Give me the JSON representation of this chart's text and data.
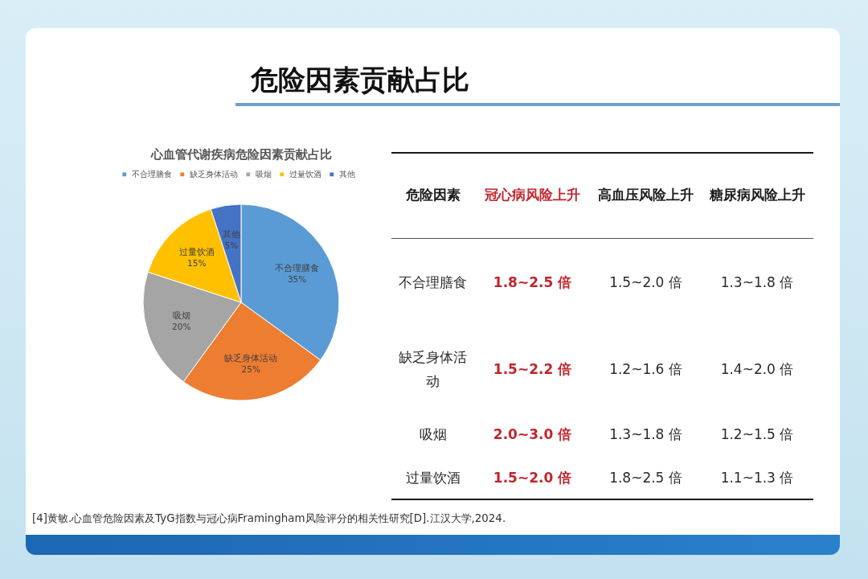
{
  "chart_data": [
    {
      "type": "other",
      "title": "危险因素贡献占比"
    },
    {
      "type": "pie",
      "title": "心血管代谢疾病危险因素贡献占比",
      "categories": [
        "不合理膳食",
        "缺乏身体活动",
        "吸烟",
        "过量饮酒",
        "其他"
      ],
      "values": [
        35,
        25,
        20,
        15,
        5
      ],
      "value_labels": [
        "35%",
        "25%",
        "20%",
        "15%",
        "5%"
      ],
      "colors": [
        "#5b9bd5",
        "#ed7d31",
        "#a5a5a5",
        "#ffc000",
        "#4472c4"
      ],
      "legend": "top"
    },
    {
      "type": "other",
      "annotations": [
        "危险因素",
        "冠心病风险上升",
        "高血压风险上升",
        "糖尿病风险上升",
        "不合理膳食",
        "1.8~2.5 倍",
        "1.5~2.0 倍",
        "1.3~1.8 倍",
        "缺乏身体活动",
        "1.5~2.2 倍",
        "1.2~1.6 倍",
        "1.4~2.0 倍",
        "吸烟",
        "2.0~3.0 倍",
        "1.3~1.8 倍",
        "1.2~1.5 倍",
        "过量饮酒",
        "1.5~2.0 倍",
        "1.8~2.5 倍",
        "1.1~1.3 倍"
      ]
    },
    {
      "type": "other",
      "annotations": [
        "[4]黄敏.心血管危险因素及TyG指数与冠心病Framingham风险评分的相关性研究[D].江汉大学,2024."
      ]
    }
  ]
}
